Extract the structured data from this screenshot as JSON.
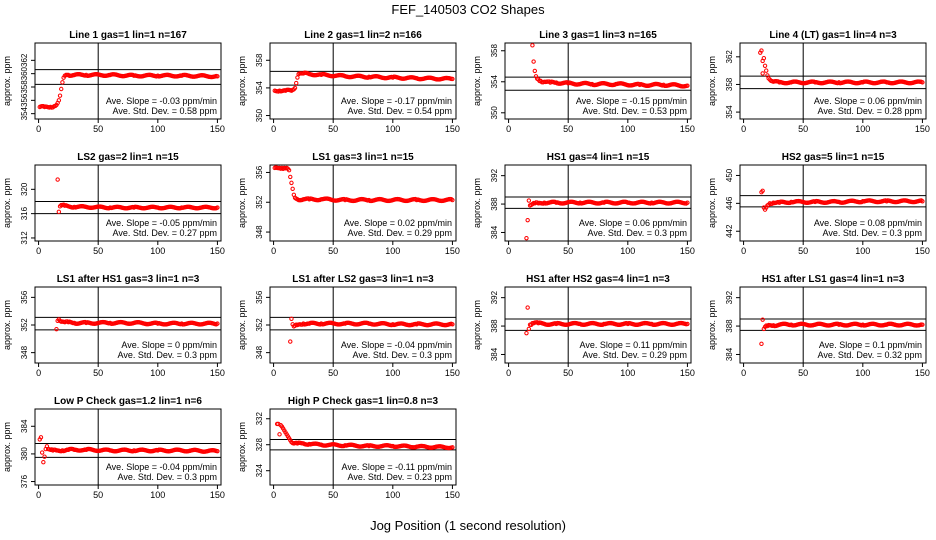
{
  "page": {
    "title": "FEF_140503  CO2 Shapes",
    "xlabel": "Jog Position (1 second resolution)"
  },
  "chart_data": [
    {
      "type": "scatter",
      "title": "Line 1 gas=1 lin=1 n=167",
      "ylabel": "approx. ppm",
      "xlim": [
        -3,
        153
      ],
      "ylim": [
        353.2,
        364.6
      ],
      "x_ticks": [
        0,
        50,
        100,
        150
      ],
      "y_ticks": [
        354,
        356,
        358,
        360,
        362
      ],
      "hlines": [
        360.6,
        358.4
      ],
      "vline": 50,
      "slope_text": "Ave. Slope = -0.03 ppm/min",
      "sd_text": "Ave. Std. Dev. = 0.58 ppm",
      "series": [
        {
          "color": "#ff0000",
          "x": [
            1,
            5,
            10,
            13,
            15,
            16,
            17,
            18,
            19,
            20,
            21,
            22,
            23,
            24,
            25,
            30,
            40,
            60,
            80,
            100,
            120,
            150
          ],
          "y": [
            355.0,
            355.0,
            355.0,
            355.1,
            355.3,
            355.6,
            356.0,
            356.7,
            357.7,
            358.7,
            359.4,
            359.7,
            359.8,
            359.8,
            359.8,
            359.8,
            359.8,
            359.8,
            359.7,
            359.7,
            359.7,
            359.6
          ]
        }
      ]
    },
    {
      "type": "scatter",
      "title": "Line 2 gas=1 lin=2 n=166",
      "ylabel": "approx. ppm",
      "xlim": [
        -3,
        153
      ],
      "ylim": [
        349.5,
        360.5
      ],
      "x_ticks": [
        0,
        50,
        100,
        150
      ],
      "y_ticks": [
        350,
        354,
        358
      ],
      "hlines": [
        356.4,
        354.4
      ],
      "vline": 50,
      "slope_text": "Ave. Slope = -0.17 ppm/min",
      "sd_text": "Ave. Std. Dev. = 0.54 ppm",
      "series": [
        {
          "color": "#ff0000",
          "x": [
            1,
            5,
            10,
            15,
            18,
            19,
            20,
            21,
            22,
            23,
            24,
            25,
            30,
            40,
            60,
            80,
            100,
            120,
            150
          ],
          "y": [
            353.6,
            353.6,
            353.6,
            353.6,
            354.0,
            354.7,
            355.5,
            356.0,
            356.1,
            356.1,
            356.1,
            356.1,
            356.0,
            355.9,
            355.7,
            355.6,
            355.5,
            355.4,
            355.3
          ]
        }
      ]
    },
    {
      "type": "scatter",
      "title": "Line 3 gas=1 lin=3 n=165",
      "ylabel": "approx. ppm",
      "xlim": [
        -3,
        153
      ],
      "ylim": [
        349.2,
        359.0
      ],
      "x_ticks": [
        0,
        50,
        100,
        150
      ],
      "y_ticks": [
        350,
        354,
        358
      ],
      "hlines": [
        354.6,
        352.9
      ],
      "vline": 50,
      "slope_text": "Ave. Slope = -0.15 ppm/min",
      "sd_text": "Ave. Std. Dev. = 0.53 ppm",
      "series": [
        {
          "color": "#ff0000",
          "x": [
            20,
            21,
            22,
            23,
            24,
            25,
            27,
            30,
            35,
            40,
            50,
            70,
            90,
            110,
            130,
            150
          ],
          "y": [
            358.7,
            356.6,
            355.4,
            354.7,
            354.4,
            354.3,
            354.1,
            354.0,
            353.9,
            353.9,
            353.8,
            353.7,
            353.7,
            353.6,
            353.6,
            353.5
          ]
        }
      ]
    },
    {
      "type": "scatter",
      "title": "Line 4 (LT) gas=1 lin=4 n=3",
      "ylabel": "approx. ppm",
      "xlim": [
        -3,
        153
      ],
      "ylim": [
        353.0,
        364.0
      ],
      "x_ticks": [
        0,
        50,
        100,
        150
      ],
      "y_ticks": [
        354,
        358,
        362
      ],
      "hlines": [
        359.2,
        357.4
      ],
      "vline": 50,
      "slope_text": "Ave. Slope = 0.06 ppm/min",
      "sd_text": "Ave. Std. Dev. = 0.28 ppm",
      "series": [
        {
          "color": "#ff0000",
          "x": [
            14,
            15,
            16,
            16,
            17,
            18,
            19,
            20,
            22,
            25,
            30,
            40,
            60,
            80,
            100,
            120,
            150
          ],
          "y": [
            362.6,
            362.9,
            361.4,
            359.6,
            361.8,
            360.7,
            360.0,
            359.3,
            358.7,
            358.4,
            358.3,
            358.3,
            358.3,
            358.3,
            358.3,
            358.3,
            358.3
          ]
        }
      ]
    },
    {
      "type": "scatter",
      "title": "LS2 gas=2 lin=1 n=15",
      "ylabel": "approx. ppm",
      "xlim": [
        -3,
        153
      ],
      "ylim": [
        311.5,
        324.0
      ],
      "x_ticks": [
        0,
        50,
        100,
        150
      ],
      "y_ticks": [
        312,
        316,
        320
      ],
      "hlines": [
        318.0,
        316.0
      ],
      "vline": 50,
      "slope_text": "Ave. Slope = -0.05 ppm/min",
      "sd_text": "Ave. Std. Dev. = 0.27 ppm",
      "series": [
        {
          "color": "#ff0000",
          "x": [
            16,
            17,
            18,
            19,
            20,
            22,
            25,
            30,
            40,
            60,
            80,
            100,
            120,
            150
          ],
          "y": [
            321.6,
            316.3,
            317.2,
            317.4,
            317.4,
            317.3,
            317.2,
            317.1,
            317.1,
            317.0,
            317.0,
            317.0,
            317.0,
            317.0
          ]
        }
      ]
    },
    {
      "type": "scatter",
      "title": "LS1 gas=3 lin=1 n=15",
      "ylabel": "approx. ppm",
      "xlim": [
        -3,
        153
      ],
      "ylim": [
        346.8,
        357.0
      ],
      "x_ticks": [
        0,
        50,
        100,
        150
      ],
      "y_ticks": [
        348,
        352,
        356
      ],
      "hlines": [],
      "vline": 50,
      "slope_text": "Ave. Slope = 0.02 ppm/min",
      "sd_text": "Ave. Std. Dev. = 0.29 ppm",
      "series": [
        {
          "color": "#ff0000",
          "x": [
            1,
            3,
            5,
            7,
            9,
            11,
            13,
            14,
            15,
            16,
            17,
            18,
            20,
            25,
            30,
            40,
            60,
            80,
            100,
            120,
            150
          ],
          "y": [
            356.6,
            356.6,
            356.6,
            356.6,
            356.6,
            356.6,
            356.3,
            355.4,
            354.6,
            353.8,
            353.0,
            352.6,
            352.4,
            352.4,
            352.4,
            352.4,
            352.3,
            352.3,
            352.3,
            352.3,
            352.3
          ]
        }
      ]
    },
    {
      "type": "scatter",
      "title": "HS1 gas=4 lin=1 n=15",
      "ylabel": "approx. ppm",
      "xlim": [
        -3,
        153
      ],
      "ylim": [
        382.8,
        393.5
      ],
      "x_ticks": [
        0,
        50,
        100,
        150
      ],
      "y_ticks": [
        384,
        388,
        392
      ],
      "hlines": [
        389.0,
        387.4
      ],
      "vline": 50,
      "slope_text": "Ave. Slope = 0.06 ppm/min",
      "sd_text": "Ave. Std. Dev. = 0.3 ppm",
      "series": [
        {
          "color": "#ff0000",
          "x": [
            15,
            17,
            18,
            20,
            22,
            25,
            30,
            40,
            60,
            80,
            100,
            120,
            150
          ],
          "y": [
            383.2,
            388.5,
            387.8,
            388.0,
            388.1,
            388.1,
            388.2,
            388.2,
            388.2,
            388.2,
            388.2,
            388.2,
            388.2
          ]
        }
      ]
    },
    {
      "type": "scatter",
      "title": "HS2 gas=5 lin=1 n=15",
      "ylabel": "approx. ppm",
      "xlim": [
        -3,
        153
      ],
      "ylim": [
        440.6,
        451.5
      ],
      "x_ticks": [
        0,
        50,
        100,
        150
      ],
      "y_ticks": [
        442,
        446,
        450
      ],
      "hlines": [
        447.1,
        445.5
      ],
      "vline": 50,
      "slope_text": "Ave. Slope = 0.08 ppm/min",
      "sd_text": "Ave. Std. Dev. = 0.3 ppm",
      "series": [
        {
          "color": "#ff0000",
          "x": [
            15,
            16,
            17,
            18,
            19,
            20,
            22,
            25,
            30,
            40,
            60,
            80,
            100,
            120,
            150
          ],
          "y": [
            447.6,
            447.8,
            445.4,
            445.1,
            445.4,
            445.7,
            446.0,
            446.1,
            446.1,
            446.2,
            446.2,
            446.2,
            446.3,
            446.3,
            446.3
          ]
        }
      ]
    },
    {
      "type": "scatter",
      "title": "LS1 after HS1 gas=3 lin=1 n=3",
      "ylabel": "approx. ppm",
      "xlim": [
        -3,
        153
      ],
      "ylim": [
        346.5,
        357.5
      ],
      "x_ticks": [
        0,
        50,
        100,
        150
      ],
      "y_ticks": [
        348,
        352,
        356
      ],
      "hlines": [
        353.1,
        351.3
      ],
      "vline": 50,
      "slope_text": "Ave. Slope = 0 ppm/min",
      "sd_text": "Ave. Std. Dev. = 0.3 ppm",
      "series": [
        {
          "color": "#ff0000",
          "x": [
            15,
            16,
            17,
            18,
            20,
            22,
            25,
            30,
            40,
            60,
            80,
            100,
            120,
            150
          ],
          "y": [
            351.4,
            352.6,
            352.8,
            352.6,
            352.5,
            352.4,
            352.4,
            352.3,
            352.3,
            352.3,
            352.3,
            352.2,
            352.2,
            352.2
          ]
        }
      ]
    },
    {
      "type": "scatter",
      "title": "LS1 after LS2 gas=3 lin=1 n=3",
      "ylabel": "approx. ppm",
      "xlim": [
        -3,
        153
      ],
      "ylim": [
        346.5,
        357.5
      ],
      "x_ticks": [
        0,
        50,
        100,
        150
      ],
      "y_ticks": [
        348,
        352,
        356
      ],
      "hlines": [
        353.1,
        351.3
      ],
      "vline": 50,
      "slope_text": "Ave. Slope = -0.04 ppm/min",
      "sd_text": "Ave. Std. Dev. = 0.3 ppm",
      "series": [
        {
          "color": "#ff0000",
          "x": [
            14,
            15,
            16,
            17,
            18,
            20,
            22,
            25,
            30,
            40,
            60,
            80,
            100,
            120,
            150
          ],
          "y": [
            349.6,
            352.9,
            352.1,
            351.8,
            351.9,
            352.0,
            352.1,
            352.2,
            352.2,
            352.2,
            352.2,
            352.2,
            352.1,
            352.1,
            352.1
          ]
        }
      ]
    },
    {
      "type": "scatter",
      "title": "HS1 after HS2 gas=4 lin=1 n=3",
      "ylabel": "approx. ppm",
      "xlim": [
        -3,
        153
      ],
      "ylim": [
        382.8,
        393.5
      ],
      "x_ticks": [
        0,
        50,
        100,
        150
      ],
      "y_ticks": [
        384,
        388,
        392
      ],
      "hlines": [
        389.0,
        387.4
      ],
      "vline": 50,
      "slope_text": "Ave. Slope = 0.11 ppm/min",
      "sd_text": "Ave. Std. Dev. = 0.29 ppm",
      "series": [
        {
          "color": "#ff0000",
          "x": [
            15,
            16,
            17,
            18,
            20,
            22,
            25,
            30,
            40,
            60,
            80,
            100,
            120,
            150
          ],
          "y": [
            387.0,
            390.6,
            387.6,
            388.2,
            388.4,
            388.5,
            388.4,
            388.3,
            388.3,
            388.3,
            388.3,
            388.3,
            388.3,
            388.3
          ]
        }
      ]
    },
    {
      "type": "scatter",
      "title": "HS1 after LS1 gas=4 lin=1 n=3",
      "ylabel": "approx. ppm",
      "xlim": [
        -3,
        153
      ],
      "ylim": [
        382.8,
        393.5
      ],
      "x_ticks": [
        0,
        50,
        100,
        150
      ],
      "y_ticks": [
        384,
        388,
        392
      ],
      "hlines": [
        389.0,
        387.4
      ],
      "vline": 50,
      "slope_text": "Ave. Slope = 0.1 ppm/min",
      "sd_text": "Ave. Std. Dev. = 0.32 ppm",
      "series": [
        {
          "color": "#ff0000",
          "x": [
            15,
            16,
            17,
            18,
            20,
            22,
            25,
            30,
            40,
            60,
            80,
            100,
            120,
            150
          ],
          "y": [
            385.5,
            388.9,
            387.6,
            387.9,
            388.0,
            388.1,
            388.1,
            388.2,
            388.2,
            388.2,
            388.2,
            388.2,
            388.2,
            388.2
          ]
        }
      ]
    },
    {
      "type": "scatter",
      "title": "Low P Check gas=1.2 lin=1 n=6",
      "ylabel": "approx. ppm",
      "xlim": [
        -3,
        153
      ],
      "ylim": [
        375.5,
        386.5
      ],
      "x_ticks": [
        0,
        50,
        100,
        150
      ],
      "y_ticks": [
        376,
        380,
        384
      ],
      "hlines": [
        381.5,
        379.5
      ],
      "vline": 50,
      "slope_text": "Ave. Slope = -0.04 ppm/min",
      "sd_text": "Ave. Std. Dev. = 0.3 ppm",
      "series": [
        {
          "color": "#ff0000",
          "x": [
            1,
            2,
            3,
            4,
            5,
            6,
            7,
            8,
            10,
            12,
            15,
            20,
            25,
            30,
            40,
            60,
            80,
            100,
            120,
            150
          ],
          "y": [
            382.1,
            382.4,
            380.2,
            378.8,
            379.6,
            380.7,
            381.1,
            380.7,
            380.6,
            380.5,
            380.5,
            380.5,
            380.6,
            380.6,
            380.6,
            380.5,
            380.5,
            380.5,
            380.5,
            380.4
          ]
        }
      ]
    },
    {
      "type": "scatter",
      "title": "High P Check gas=1 lin=0.8 n=3",
      "ylabel": "approx. ppm",
      "xlim": [
        -3,
        153
      ],
      "ylim": [
        321.8,
        333.5
      ],
      "x_ticks": [
        0,
        50,
        100,
        150
      ],
      "y_ticks": [
        324,
        328,
        332
      ],
      "hlines": [
        328.8,
        327.2
      ],
      "vline": 50,
      "slope_text": "Ave. Slope = -0.11 ppm/min",
      "sd_text": "Ave. Std. Dev. = 0.23 ppm",
      "series": [
        {
          "color": "#ff0000",
          "x": [
            3,
            4,
            5,
            6,
            7,
            8,
            9,
            10,
            11,
            12,
            13,
            14,
            15,
            17,
            20,
            25,
            30,
            40,
            60,
            80,
            100,
            120,
            150
          ],
          "y": [
            331.2,
            331.2,
            329.6,
            331.0,
            330.8,
            330.5,
            330.2,
            329.9,
            329.6,
            329.3,
            329.0,
            328.7,
            328.4,
            328.2,
            328.2,
            328.2,
            328.1,
            328.0,
            327.9,
            327.8,
            327.8,
            327.7,
            327.6
          ]
        }
      ]
    }
  ]
}
